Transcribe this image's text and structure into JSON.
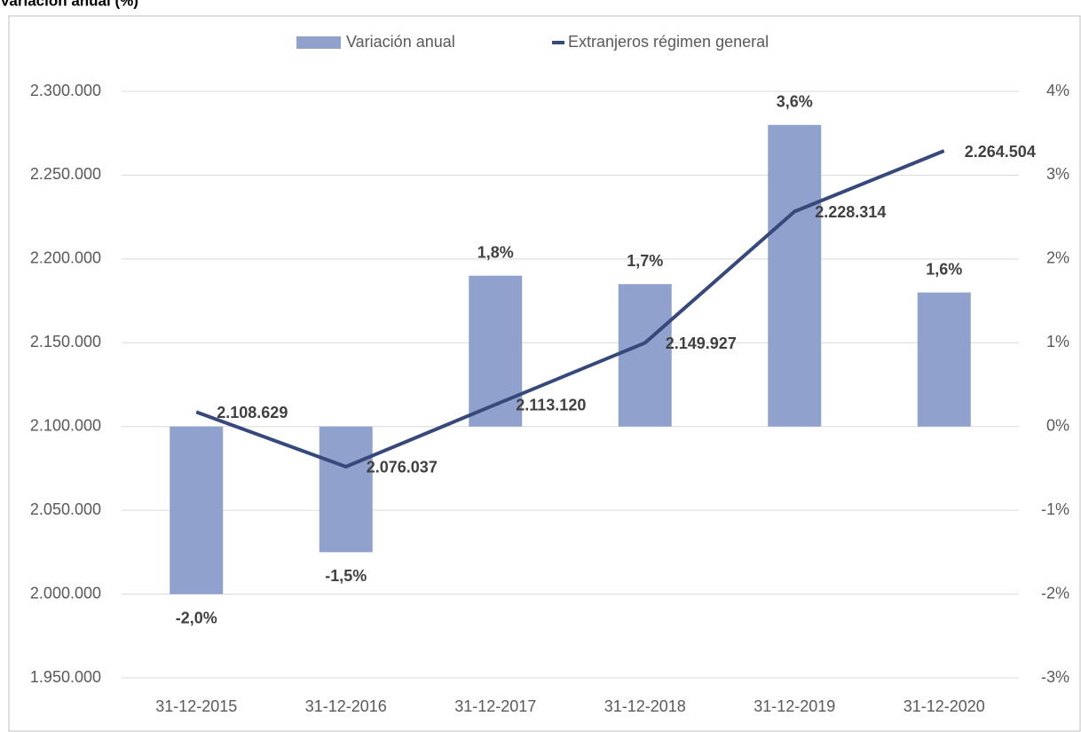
{
  "chart_data": {
    "type": "bar_line",
    "title": "Variación anual (%)",
    "categories": [
      "31-12-2015",
      "31-12-2016",
      "31-12-2017",
      "31-12-2018",
      "31-12-2019",
      "31-12-2020"
    ],
    "series": [
      {
        "name": "Variación anual",
        "type": "bar",
        "axis": "y2",
        "color": "#8fa1cc",
        "values": [
          -2.0,
          -1.5,
          1.8,
          1.7,
          3.6,
          1.6
        ],
        "value_labels": [
          "-2,0%",
          "-1,5%",
          "1,8%",
          "1,7%",
          "3,6%",
          "1,6%"
        ]
      },
      {
        "name": "Extranjeros régimen general",
        "type": "line",
        "color": "#36497a",
        "values": [
          2108629,
          2076037,
          2113120,
          2149927,
          2228314,
          2264504
        ],
        "value_labels": [
          "2.108.629",
          "2.076.037",
          "2.113.120",
          "2.149.927",
          "2.228.314",
          "2.264.504"
        ]
      }
    ],
    "ylim": [
      1950000,
      2300000
    ],
    "yticks": [
      {
        "value": 1950000,
        "label": "1.950.000"
      },
      {
        "value": 2000000,
        "label": "2.000.000"
      },
      {
        "value": 2050000,
        "label": "2.050.000"
      },
      {
        "value": 2100000,
        "label": "2.100.000"
      },
      {
        "value": 2150000,
        "label": "2.150.000"
      },
      {
        "value": 2200000,
        "label": "2.200.000"
      },
      {
        "value": 2250000,
        "label": "2.250.000"
      },
      {
        "value": 2300000,
        "label": "2.300.000"
      }
    ],
    "y2lim": [
      -3,
      4
    ],
    "y2ticks": [
      {
        "value": -3,
        "label": "-3%"
      },
      {
        "value": -2,
        "label": "-2%"
      },
      {
        "value": -1,
        "label": "-1%"
      },
      {
        "value": 0,
        "label": "0%"
      },
      {
        "value": 1,
        "label": "1%"
      },
      {
        "value": 2,
        "label": "2%"
      },
      {
        "value": 3,
        "label": "3%"
      },
      {
        "value": 4,
        "label": "4%"
      }
    ],
    "grid": true,
    "legend": "top"
  }
}
